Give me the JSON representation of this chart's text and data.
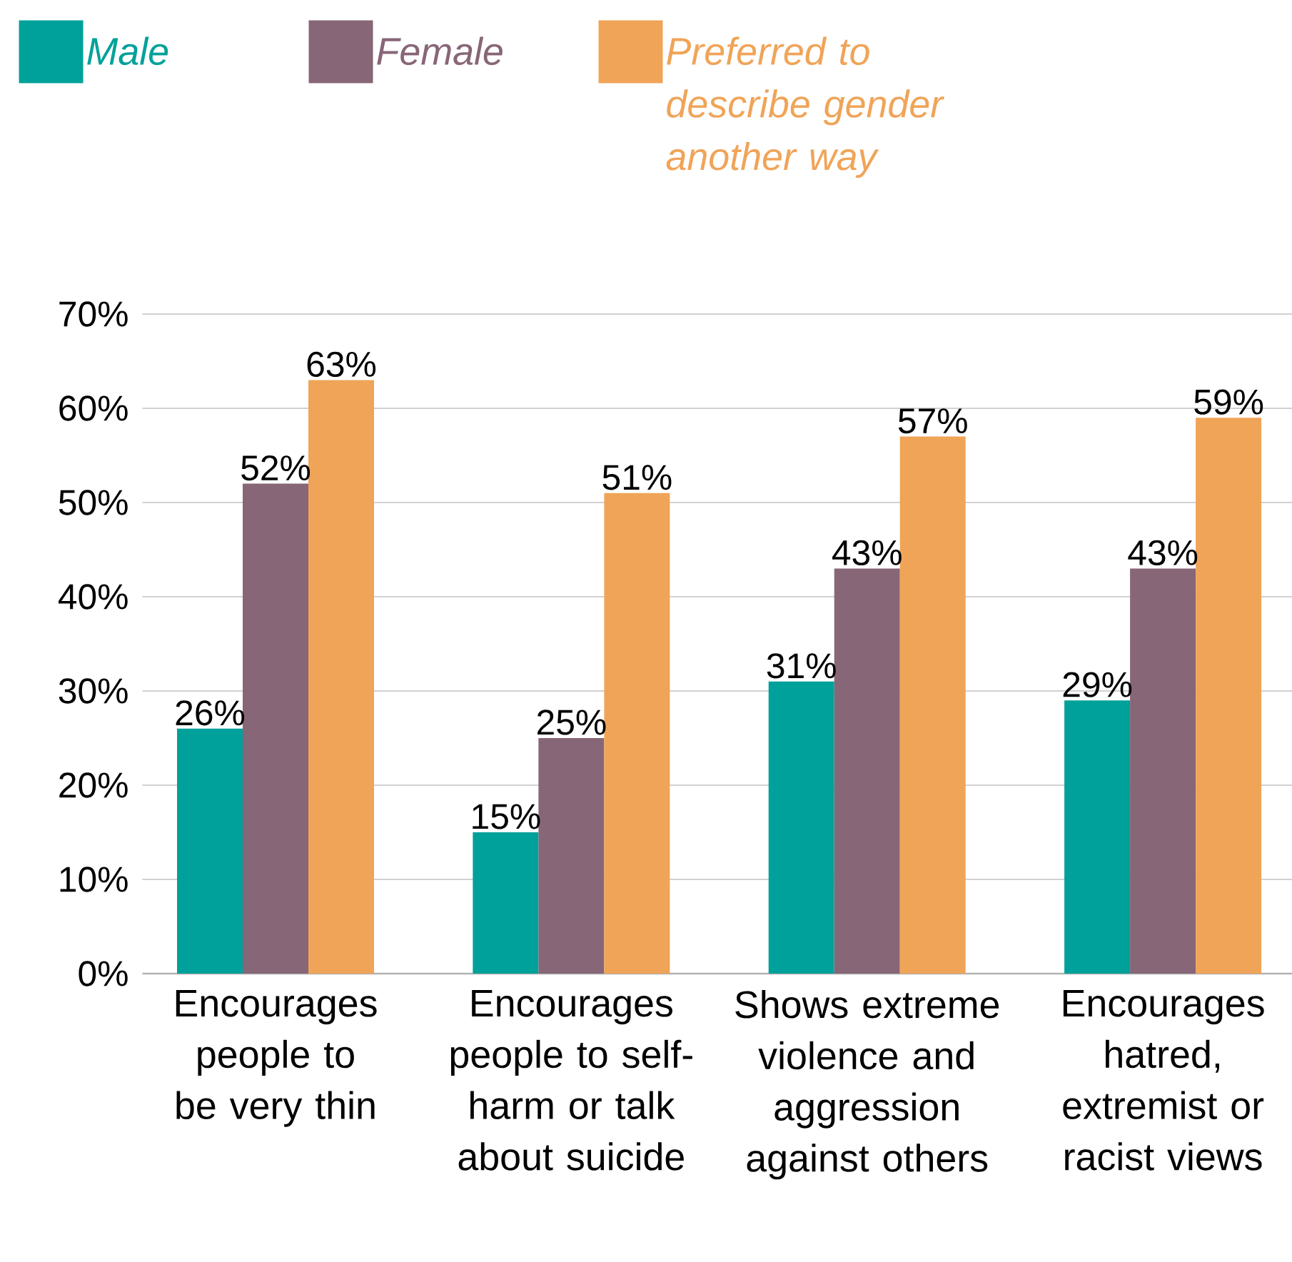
{
  "chart_data": {
    "type": "bar",
    "categories": [
      "Encourages people to be very thin",
      "Encourages people to self-harm or talk about suicide",
      "Shows extreme violence and aggression against others",
      "Encourages hatred, extremist or racist views"
    ],
    "series": [
      {
        "name": "Male",
        "color": "#00A19A",
        "values": [
          26,
          15,
          31,
          29
        ],
        "value_labels": [
          "26%",
          "15%",
          "31%",
          "29%"
        ]
      },
      {
        "name": "Female",
        "color": "#876677",
        "values": [
          52,
          25,
          43,
          43
        ],
        "value_labels": [
          "52%",
          "25%",
          "43%",
          "43%"
        ]
      },
      {
        "name": "Preferred to describe gender another way",
        "color": "#F0A458",
        "values": [
          63,
          51,
          57,
          59
        ],
        "value_labels": [
          "63%",
          "51%",
          "57%",
          "59%"
        ]
      }
    ],
    "ylim": [
      0,
      70
    ],
    "yticks": [
      {
        "value": 0,
        "label": "0%"
      },
      {
        "value": 10,
        "label": "10%"
      },
      {
        "value": 20,
        "label": "20%"
      },
      {
        "value": 30,
        "label": "30%"
      },
      {
        "value": 40,
        "label": "40%"
      },
      {
        "value": 50,
        "label": "50%"
      },
      {
        "value": 60,
        "label": "60%"
      },
      {
        "value": 70,
        "label": "70%"
      }
    ],
    "grid": "y",
    "legend": "top left"
  }
}
